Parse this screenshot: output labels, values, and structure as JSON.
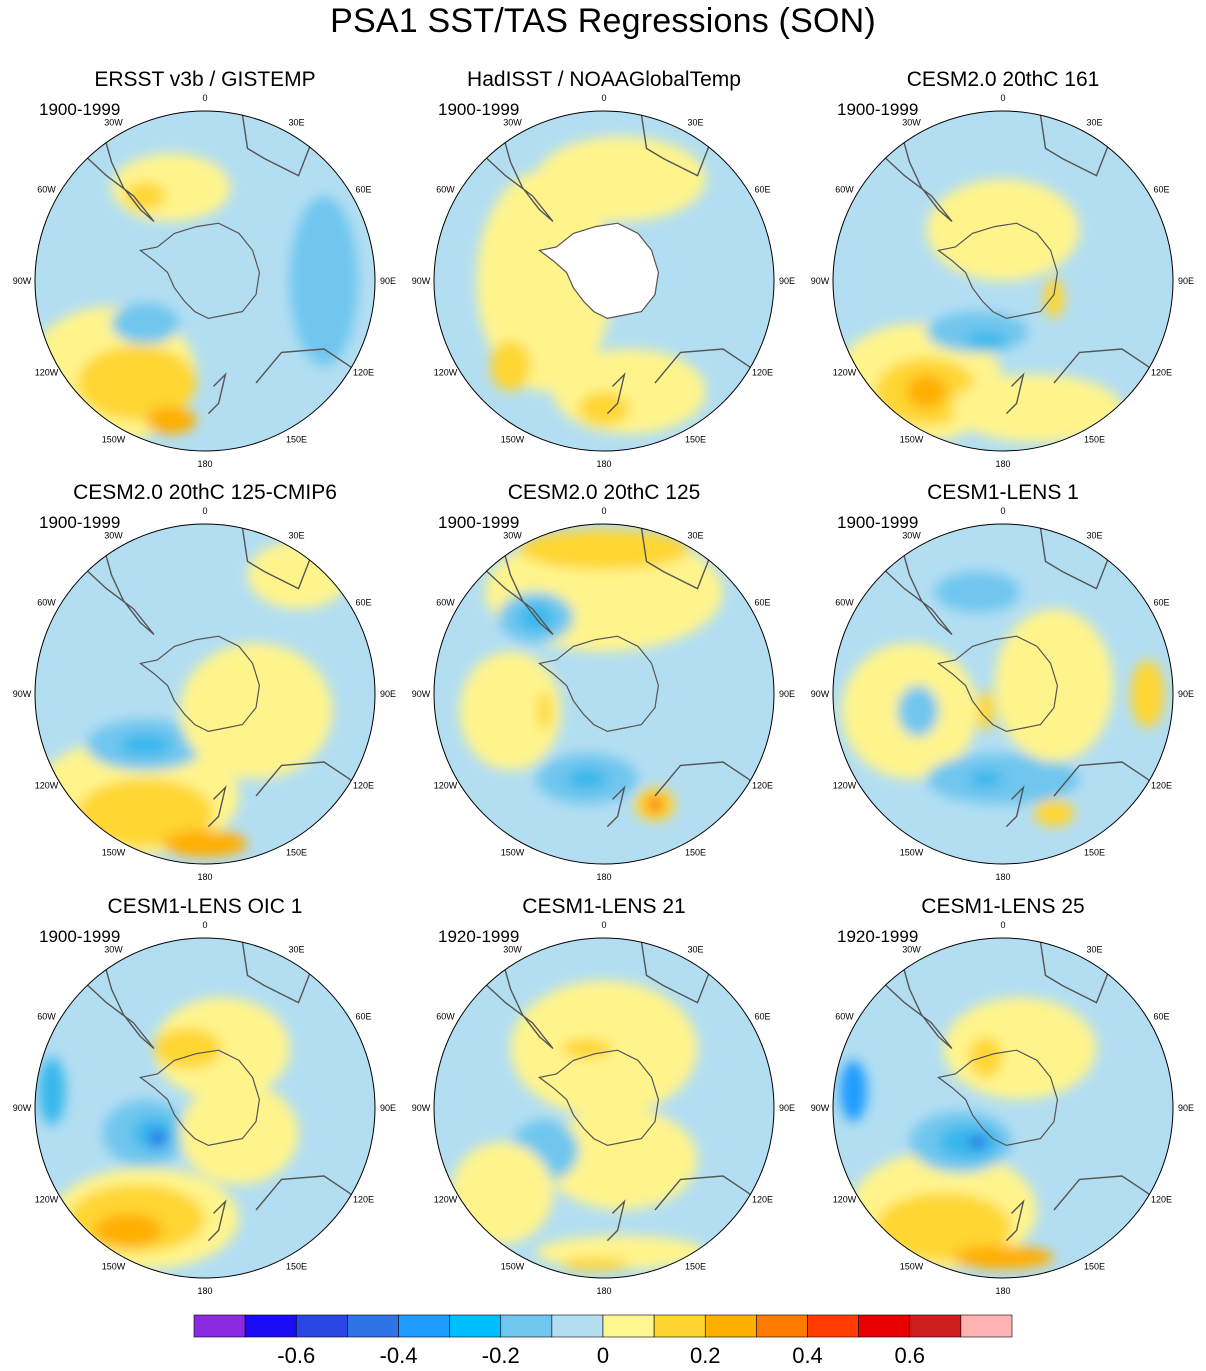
{
  "title": "PSA1 SST/TAS Regressions (SON)",
  "panels": [
    {
      "name": "ERSST v3b / GISTEMP",
      "period": "1900-1999",
      "masked": false,
      "blobs": [
        {
          "c": "#fff48c",
          "dx": -0.55,
          "dy": 0.55,
          "rx": 0.5,
          "ry": 0.4
        },
        {
          "c": "#ffd630",
          "dx": -0.4,
          "dy": 0.6,
          "rx": 0.35,
          "ry": 0.22
        },
        {
          "c": "#ffaf00",
          "dx": -0.2,
          "dy": 0.82,
          "rx": 0.15,
          "ry": 0.08
        },
        {
          "c": "#6fc6ef",
          "dx": 0.7,
          "dy": 0.0,
          "rx": 0.2,
          "ry": 0.5
        },
        {
          "c": "#6fc6ef",
          "dx": -0.35,
          "dy": 0.25,
          "rx": 0.2,
          "ry": 0.12
        },
        {
          "c": "#fff48c",
          "dx": -0.2,
          "dy": -0.55,
          "rx": 0.35,
          "ry": 0.2
        },
        {
          "c": "#ffd630",
          "dx": -0.35,
          "dy": -0.5,
          "rx": 0.12,
          "ry": 0.08
        }
      ]
    },
    {
      "name": "HadISST / NOAAGlobalTemp",
      "period": "1900-1999",
      "masked": true,
      "blobs": [
        {
          "c": "#fff48c",
          "dx": -0.35,
          "dy": 0.0,
          "rx": 0.4,
          "ry": 0.65
        },
        {
          "c": "#fff48c",
          "dx": 0.15,
          "dy": 0.65,
          "rx": 0.45,
          "ry": 0.25
        },
        {
          "c": "#fff48c",
          "dx": 0.1,
          "dy": -0.6,
          "rx": 0.5,
          "ry": 0.25
        },
        {
          "c": "#ffd630",
          "dx": -0.55,
          "dy": 0.5,
          "rx": 0.12,
          "ry": 0.15
        },
        {
          "c": "#ffd630",
          "dx": 0.0,
          "dy": 0.75,
          "rx": 0.15,
          "ry": 0.1
        }
      ]
    },
    {
      "name": "CESM2.0 20thC 161",
      "period": "1900-1999",
      "masked": false,
      "blobs": [
        {
          "c": "#fff48c",
          "dx": -0.5,
          "dy": 0.6,
          "rx": 0.5,
          "ry": 0.35
        },
        {
          "c": "#ffd630",
          "dx": -0.45,
          "dy": 0.65,
          "rx": 0.3,
          "ry": 0.2
        },
        {
          "c": "#ffaf00",
          "dx": -0.45,
          "dy": 0.65,
          "rx": 0.12,
          "ry": 0.1
        },
        {
          "c": "#6fc6ef",
          "dx": -0.15,
          "dy": 0.3,
          "rx": 0.3,
          "ry": 0.12
        },
        {
          "c": "#38b7ec",
          "dx": -0.1,
          "dy": 0.35,
          "rx": 0.12,
          "ry": 0.05
        },
        {
          "c": "#fff48c",
          "dx": 0.0,
          "dy": -0.3,
          "rx": 0.45,
          "ry": 0.3
        },
        {
          "c": "#ffd630",
          "dx": 0.3,
          "dy": 0.1,
          "rx": 0.06,
          "ry": 0.12
        },
        {
          "c": "#fff48c",
          "dx": 0.2,
          "dy": 0.75,
          "rx": 0.5,
          "ry": 0.2
        }
      ]
    },
    {
      "name": "CESM2.0 20thC 125-CMIP6",
      "period": "1900-1999",
      "masked": false,
      "blobs": [
        {
          "c": "#fff48c",
          "dx": -0.4,
          "dy": 0.6,
          "rx": 0.6,
          "ry": 0.35
        },
        {
          "c": "#ffd630",
          "dx": -0.35,
          "dy": 0.7,
          "rx": 0.4,
          "ry": 0.2
        },
        {
          "c": "#ffaf00",
          "dx": 0.0,
          "dy": 0.88,
          "rx": 0.25,
          "ry": 0.08
        },
        {
          "c": "#6fc6ef",
          "dx": -0.35,
          "dy": 0.3,
          "rx": 0.35,
          "ry": 0.15
        },
        {
          "c": "#38b7ec",
          "dx": -0.35,
          "dy": 0.3,
          "rx": 0.15,
          "ry": 0.06
        },
        {
          "c": "#fff48c",
          "dx": 0.3,
          "dy": 0.1,
          "rx": 0.45,
          "ry": 0.4
        },
        {
          "c": "#fff48c",
          "dx": 0.55,
          "dy": -0.7,
          "rx": 0.3,
          "ry": 0.2
        }
      ]
    },
    {
      "name": "CESM2.0 20thC 125",
      "period": "1900-1999",
      "masked": false,
      "blobs": [
        {
          "c": "#fff48c",
          "dx": 0.0,
          "dy": -0.6,
          "rx": 0.7,
          "ry": 0.35
        },
        {
          "c": "#ffd630",
          "dx": 0.0,
          "dy": -0.85,
          "rx": 0.5,
          "ry": 0.12
        },
        {
          "c": "#6fc6ef",
          "dx": -0.4,
          "dy": -0.45,
          "rx": 0.22,
          "ry": 0.15
        },
        {
          "c": "#38b7ec",
          "dx": -0.4,
          "dy": -0.45,
          "rx": 0.1,
          "ry": 0.08
        },
        {
          "c": "#6fc6ef",
          "dx": -0.1,
          "dy": 0.5,
          "rx": 0.3,
          "ry": 0.15
        },
        {
          "c": "#38b7ec",
          "dx": -0.1,
          "dy": 0.5,
          "rx": 0.12,
          "ry": 0.06
        },
        {
          "c": "#fff48c",
          "dx": -0.55,
          "dy": 0.1,
          "rx": 0.3,
          "ry": 0.35
        },
        {
          "c": "#ffd630",
          "dx": 0.3,
          "dy": 0.65,
          "rx": 0.12,
          "ry": 0.1
        },
        {
          "c": "#ff7b00",
          "dx": 0.3,
          "dy": 0.65,
          "rx": 0.05,
          "ry": 0.05
        },
        {
          "c": "#ffd630",
          "dx": -0.35,
          "dy": 0.1,
          "rx": 0.04,
          "ry": 0.12
        }
      ]
    },
    {
      "name": "CESM1-LENS 1",
      "period": "1900-1999",
      "masked": false,
      "blobs": [
        {
          "c": "#fff48c",
          "dx": -0.55,
          "dy": 0.1,
          "rx": 0.4,
          "ry": 0.4
        },
        {
          "c": "#6fc6ef",
          "dx": -0.5,
          "dy": 0.1,
          "rx": 0.12,
          "ry": 0.15
        },
        {
          "c": "#6fc6ef",
          "dx": 0.0,
          "dy": 0.5,
          "rx": 0.45,
          "ry": 0.15
        },
        {
          "c": "#38b7ec",
          "dx": -0.1,
          "dy": 0.5,
          "rx": 0.1,
          "ry": 0.05
        },
        {
          "c": "#6fc6ef",
          "dx": -0.15,
          "dy": -0.6,
          "rx": 0.25,
          "ry": 0.12
        },
        {
          "c": "#fff48c",
          "dx": 0.3,
          "dy": -0.05,
          "rx": 0.35,
          "ry": 0.45
        },
        {
          "c": "#ffd630",
          "dx": -0.1,
          "dy": 0.1,
          "rx": 0.05,
          "ry": 0.12
        },
        {
          "c": "#ffd630",
          "dx": 0.85,
          "dy": 0.0,
          "rx": 0.1,
          "ry": 0.2
        },
        {
          "c": "#ffd630",
          "dx": 0.3,
          "dy": 0.7,
          "rx": 0.12,
          "ry": 0.08
        }
      ]
    },
    {
      "name": "CESM1-LENS OIC 1",
      "period": "1900-1999",
      "masked": false,
      "blobs": [
        {
          "c": "#fff48c",
          "dx": -0.35,
          "dy": 0.65,
          "rx": 0.55,
          "ry": 0.3
        },
        {
          "c": "#ffd630",
          "dx": -0.4,
          "dy": 0.65,
          "rx": 0.4,
          "ry": 0.2
        },
        {
          "c": "#ffaf00",
          "dx": -0.45,
          "dy": 0.72,
          "rx": 0.2,
          "ry": 0.1
        },
        {
          "c": "#6fc6ef",
          "dx": -0.35,
          "dy": 0.15,
          "rx": 0.25,
          "ry": 0.2
        },
        {
          "c": "#38b7ec",
          "dx": -0.3,
          "dy": 0.15,
          "rx": 0.12,
          "ry": 0.1
        },
        {
          "c": "#2857e5",
          "dx": -0.28,
          "dy": 0.18,
          "rx": 0.04,
          "ry": 0.05
        },
        {
          "c": "#38b7ec",
          "dx": -0.9,
          "dy": -0.1,
          "rx": 0.08,
          "ry": 0.2
        },
        {
          "c": "#fff48c",
          "dx": 0.1,
          "dy": -0.35,
          "rx": 0.4,
          "ry": 0.3
        },
        {
          "c": "#ffd630",
          "dx": -0.1,
          "dy": -0.35,
          "rx": 0.2,
          "ry": 0.12
        },
        {
          "c": "#fff48c",
          "dx": 0.2,
          "dy": 0.15,
          "rx": 0.35,
          "ry": 0.3
        }
      ]
    },
    {
      "name": "CESM1-LENS 21",
      "period": "1920-1999",
      "masked": false,
      "blobs": [
        {
          "c": "#fff48c",
          "dx": 0.0,
          "dy": -0.35,
          "rx": 0.55,
          "ry": 0.4
        },
        {
          "c": "#ffd630",
          "dx": -0.1,
          "dy": -0.35,
          "rx": 0.15,
          "ry": 0.06
        },
        {
          "c": "#fff48c",
          "dx": 0.1,
          "dy": 0.3,
          "rx": 0.45,
          "ry": 0.3
        },
        {
          "c": "#6fc6ef",
          "dx": -0.35,
          "dy": 0.25,
          "rx": 0.2,
          "ry": 0.18
        },
        {
          "c": "#fff48c",
          "dx": -0.6,
          "dy": 0.5,
          "rx": 0.3,
          "ry": 0.3
        },
        {
          "c": "#fff48c",
          "dx": 0.1,
          "dy": 0.85,
          "rx": 0.5,
          "ry": 0.1
        },
        {
          "c": "#ffd630",
          "dx": -0.05,
          "dy": 0.92,
          "rx": 0.2,
          "ry": 0.04
        }
      ]
    },
    {
      "name": "CESM1-LENS 25",
      "period": "1920-1999",
      "masked": false,
      "blobs": [
        {
          "c": "#fff48c",
          "dx": -0.35,
          "dy": 0.6,
          "rx": 0.55,
          "ry": 0.35
        },
        {
          "c": "#ffd630",
          "dx": -0.35,
          "dy": 0.7,
          "rx": 0.4,
          "ry": 0.2
        },
        {
          "c": "#ffaf00",
          "dx": 0.0,
          "dy": 0.88,
          "rx": 0.3,
          "ry": 0.07
        },
        {
          "c": "#6fc6ef",
          "dx": -0.25,
          "dy": 0.2,
          "rx": 0.3,
          "ry": 0.18
        },
        {
          "c": "#38b7ec",
          "dx": -0.2,
          "dy": 0.2,
          "rx": 0.18,
          "ry": 0.1
        },
        {
          "c": "#2857e5",
          "dx": -0.15,
          "dy": 0.2,
          "rx": 0.05,
          "ry": 0.03
        },
        {
          "c": "#1f9cff",
          "dx": -0.88,
          "dy": -0.1,
          "rx": 0.08,
          "ry": 0.18
        },
        {
          "c": "#fff48c",
          "dx": 0.1,
          "dy": -0.35,
          "rx": 0.45,
          "ry": 0.3
        },
        {
          "c": "#ffd630",
          "dx": -0.1,
          "dy": -0.3,
          "rx": 0.1,
          "ry": 0.12
        }
      ]
    }
  ],
  "lon_labels": [
    "0",
    "30E",
    "60E",
    "90E",
    "120E",
    "150E",
    "180",
    "150W",
    "120W",
    "90W",
    "60W",
    "30W"
  ],
  "colorbar": {
    "colors": [
      "#8a2be2",
      "#1a0df5",
      "#2a47e3",
      "#2f74e6",
      "#1f9cff",
      "#00bfff",
      "#6fc6ef",
      "#b3def2",
      "#fff68f",
      "#ffd630",
      "#ffaf00",
      "#ff7b00",
      "#ff3b00",
      "#e80000",
      "#cd1e1e",
      "#ffb3b3"
    ],
    "labels": [
      "-0.6",
      "-0.4",
      "-0.2",
      "0",
      "0.2",
      "0.4",
      "0.6"
    ]
  },
  "colors": {
    "base": "#b3def2",
    "land": "#ffffff",
    "coast": "#555555"
  }
}
